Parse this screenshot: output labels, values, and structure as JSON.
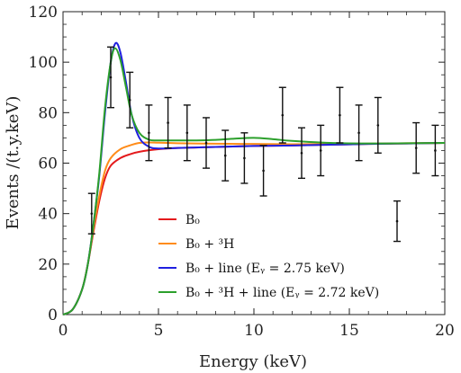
{
  "chart_data": {
    "type": "line",
    "title": "",
    "xlabel": "Energy (keV)",
    "ylabel": "Events /(t.y.keV)",
    "xlim": [
      0,
      20
    ],
    "ylim": [
      0,
      120
    ],
    "xticks": [
      0,
      5,
      10,
      15,
      20
    ],
    "yticks": [
      0,
      20,
      40,
      60,
      80,
      100,
      120
    ],
    "grid": false,
    "legend_position": "lower-center",
    "series": [
      {
        "name": "B₀",
        "color": "#e41a1c",
        "x": [
          0,
          0.5,
          1.0,
          1.3,
          1.6,
          1.9,
          2.2,
          2.5,
          3.0,
          3.5,
          4.0,
          5.0,
          6.0,
          7.0,
          8.0,
          10.0,
          12.0,
          14.0,
          16.0,
          18.0,
          20.0
        ],
        "y": [
          0,
          2,
          10,
          20,
          33,
          45,
          54,
          59,
          62,
          63.5,
          64.5,
          65.5,
          66,
          66.2,
          66.4,
          66.8,
          67,
          67.3,
          67.6,
          67.8,
          68
        ]
      },
      {
        "name": "B₀ + ³H",
        "color": "#ff8c1a",
        "x": [
          0,
          0.5,
          1.0,
          1.3,
          1.6,
          1.9,
          2.2,
          2.5,
          3.0,
          3.5,
          4.0,
          4.5,
          5.0,
          6.0,
          8.0,
          10.0,
          12.0,
          14.0,
          16.0,
          18.0,
          20.0
        ],
        "y": [
          0,
          2,
          10,
          20,
          34,
          47,
          57,
          62,
          65.5,
          67,
          68,
          68.2,
          68.1,
          67.9,
          67.7,
          67.6,
          67.5,
          67.6,
          67.7,
          67.9,
          68
        ]
      },
      {
        "name": "B₀ + line (Eᵧ = 2.75 keV)",
        "color": "#1f1fe0",
        "x": [
          0,
          0.5,
          1.0,
          1.3,
          1.6,
          1.9,
          2.2,
          2.5,
          2.75,
          3.0,
          3.3,
          3.6,
          4.0,
          4.5,
          5.0,
          6.0,
          8.0,
          10.0,
          12.0,
          14.0,
          16.0,
          18.0,
          20.0
        ],
        "y": [
          0,
          2,
          10,
          20,
          36,
          55,
          80,
          100,
          107.5,
          104,
          92,
          79,
          70,
          66.5,
          65.8,
          66,
          66.4,
          66.8,
          67,
          67.3,
          67.6,
          67.8,
          68
        ]
      },
      {
        "name": "B₀ + ³H + line (Eᵧ = 2.72 keV)",
        "color": "#2ca02c",
        "x": [
          0,
          0.5,
          1.0,
          1.3,
          1.6,
          1.9,
          2.2,
          2.5,
          2.72,
          3.0,
          3.3,
          3.6,
          4.0,
          4.5,
          5.0,
          6.0,
          7.0,
          8.0,
          9.0,
          10.0,
          11.0,
          12.0,
          14.0,
          16.0,
          18.0,
          20.0
        ],
        "y": [
          0,
          2,
          10,
          20,
          36,
          56,
          82,
          100,
          105.5,
          101,
          90,
          79,
          72,
          69.3,
          69,
          69,
          69,
          69.2,
          69.7,
          70,
          69.5,
          68.8,
          68,
          67.8,
          67.9,
          68
        ]
      }
    ],
    "data_points": {
      "name": "Data",
      "x": [
        1.5,
        2.5,
        3.5,
        4.5,
        5.5,
        6.5,
        7.5,
        8.5,
        9.5,
        10.5,
        11.5,
        12.5,
        13.5,
        14.5,
        15.5,
        16.5,
        17.5,
        18.5,
        19.5
      ],
      "y": [
        40,
        94,
        85,
        72,
        76,
        72,
        68,
        63,
        62,
        57,
        79,
        64,
        65,
        79,
        72,
        75,
        37,
        66,
        65
      ],
      "err": [
        8,
        12,
        11,
        11,
        10,
        11,
        10,
        10,
        10,
        10,
        11,
        10,
        10,
        11,
        11,
        11,
        8,
        10,
        10
      ]
    }
  }
}
